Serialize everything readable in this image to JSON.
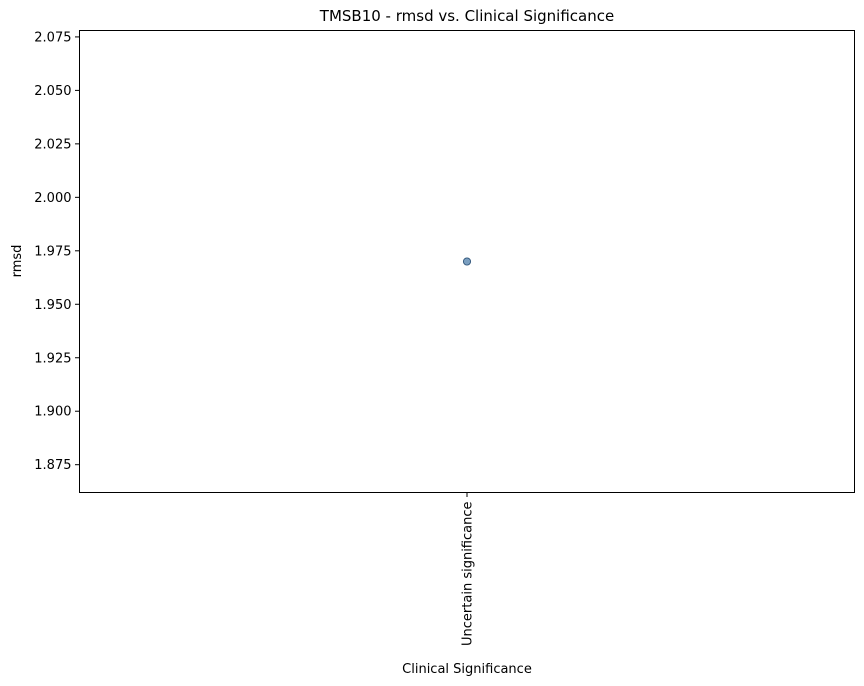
{
  "chart_data": {
    "type": "scatter",
    "title": "TMSB10 - rmsd vs. Clinical Significance",
    "xlabel": "Clinical Significance",
    "ylabel": "rmsd",
    "categories": [
      "Uncertain significance"
    ],
    "points": [
      {
        "x": "Uncertain significance",
        "y": 1.97
      }
    ],
    "ylim": [
      1.862,
      2.078
    ],
    "yticks": [
      1.875,
      1.9,
      1.925,
      1.95,
      1.975,
      2.0,
      2.025,
      2.05,
      2.075
    ],
    "ytick_labels": [
      "1.875",
      "1.900",
      "1.925",
      "1.950",
      "1.975",
      "2.000",
      "2.025",
      "2.050",
      "2.075"
    ],
    "grid": false,
    "marker_color": "#4f7fab",
    "marker_edge_color": "#30557a",
    "marker_opacity": 0.75
  }
}
